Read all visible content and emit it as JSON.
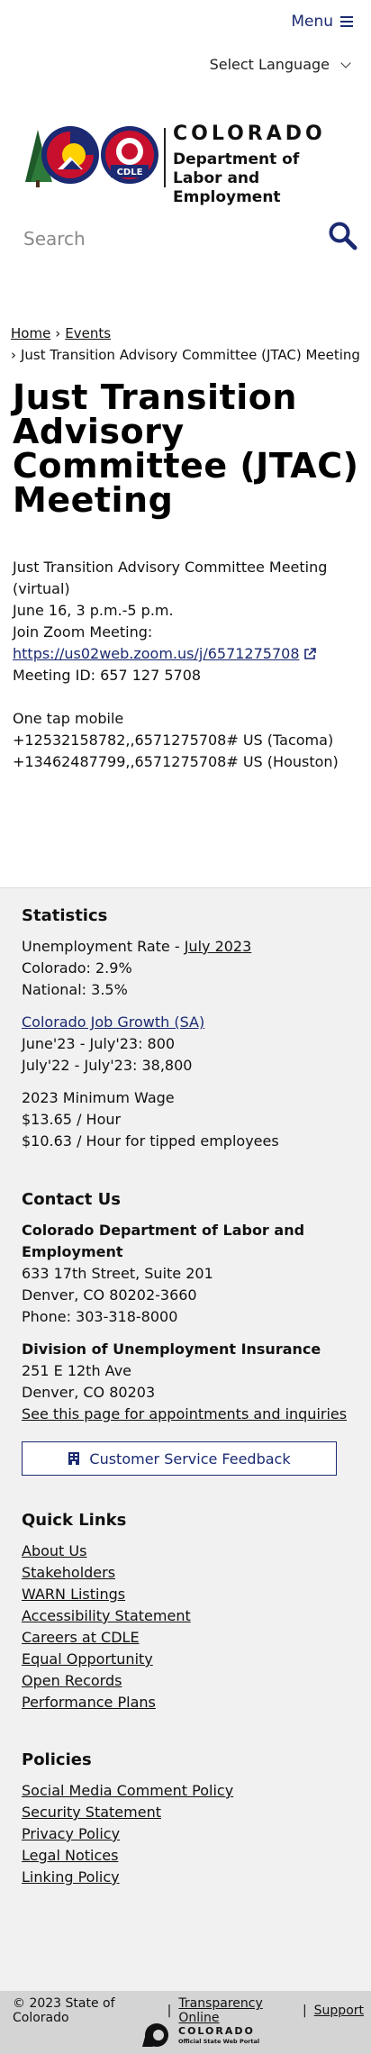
{
  "header": {
    "menu_label": "Menu",
    "language_label": "Select Language",
    "logo_state": "COLORADO",
    "logo_dept_line1": "Department of",
    "logo_dept_line2": "Labor and Employment",
    "seal_text": "CDLE"
  },
  "search": {
    "placeholder": "Search"
  },
  "breadcrumb": {
    "home": "Home",
    "events": "Events",
    "current": "Just Transition Advisory Committee (JTAC) Meeting"
  },
  "page": {
    "title": "Just Transition Advisory Committee (JTAC) Meeting",
    "event_name": "Just Transition Advisory Committee Meeting (virtual)",
    "event_time": "June 16, 3 p.m.-5 p.m.",
    "join_label": "Join Zoom Meeting:",
    "zoom_link": "https://us02web.zoom.us/j/6571275708",
    "meeting_id": "Meeting ID: 657 127 5708",
    "one_tap_label": "One tap mobile",
    "tap1": "+12532158782,,6571275708# US (Tacoma)",
    "tap2": "+13462487799,,6571275708# US (Houston)"
  },
  "statistics": {
    "heading": "Statistics",
    "unemployment_label": "Unemployment Rate - ",
    "unemployment_link": "July 2023",
    "colorado": "Colorado: 2.9%",
    "national": "National: 3.5%",
    "job_growth_link": "Colorado Job Growth (SA)",
    "growth1": "June'23 - July'23: 800",
    "growth2": "July'22 - July'23: 38,800",
    "min_wage_label": "2023 Minimum Wage",
    "wage1": "$13.65 / Hour",
    "wage2": "$10.63 / Hour for tipped employees"
  },
  "contact": {
    "heading": "Contact Us",
    "org1_line1": "Colorado Department of Labor and",
    "org1_line2": "Employment",
    "addr1": "633 17th Street, Suite 201",
    "addr2": "Denver, CO  80202-3660",
    "phone": "Phone: 303-318-8000",
    "org2": "Division of Unemployment Insurance",
    "addr3": "251 E 12th Ave",
    "addr4": "Denver, CO  80203",
    "appointments_link": "See this page for appointments and inquiries",
    "feedback_button": "Customer Service Feedback"
  },
  "quick_links": {
    "heading": "Quick Links",
    "items": [
      "About Us",
      "Stakeholders",
      "WARN Listings",
      "Accessibility Statement",
      "Careers at CDLE",
      "Equal Opportunity",
      "Open Records",
      "Performance Plans"
    ]
  },
  "policies": {
    "heading": "Policies",
    "items": [
      "Social Media Comment Policy",
      "Security Statement",
      "Privacy Policy",
      "Legal Notices",
      "Linking Policy"
    ]
  },
  "bottom": {
    "copyright": "© 2023 State of Colorado",
    "transparency": "Transparency Online",
    "support": "Support",
    "portal_title": "COLORADO",
    "portal_sub": "Official State Web Portal"
  },
  "colors": {
    "brand_blue": "#1b2a72",
    "footer_bg": "#f1f1f1",
    "bottom_bg": "#d4d4d4"
  }
}
